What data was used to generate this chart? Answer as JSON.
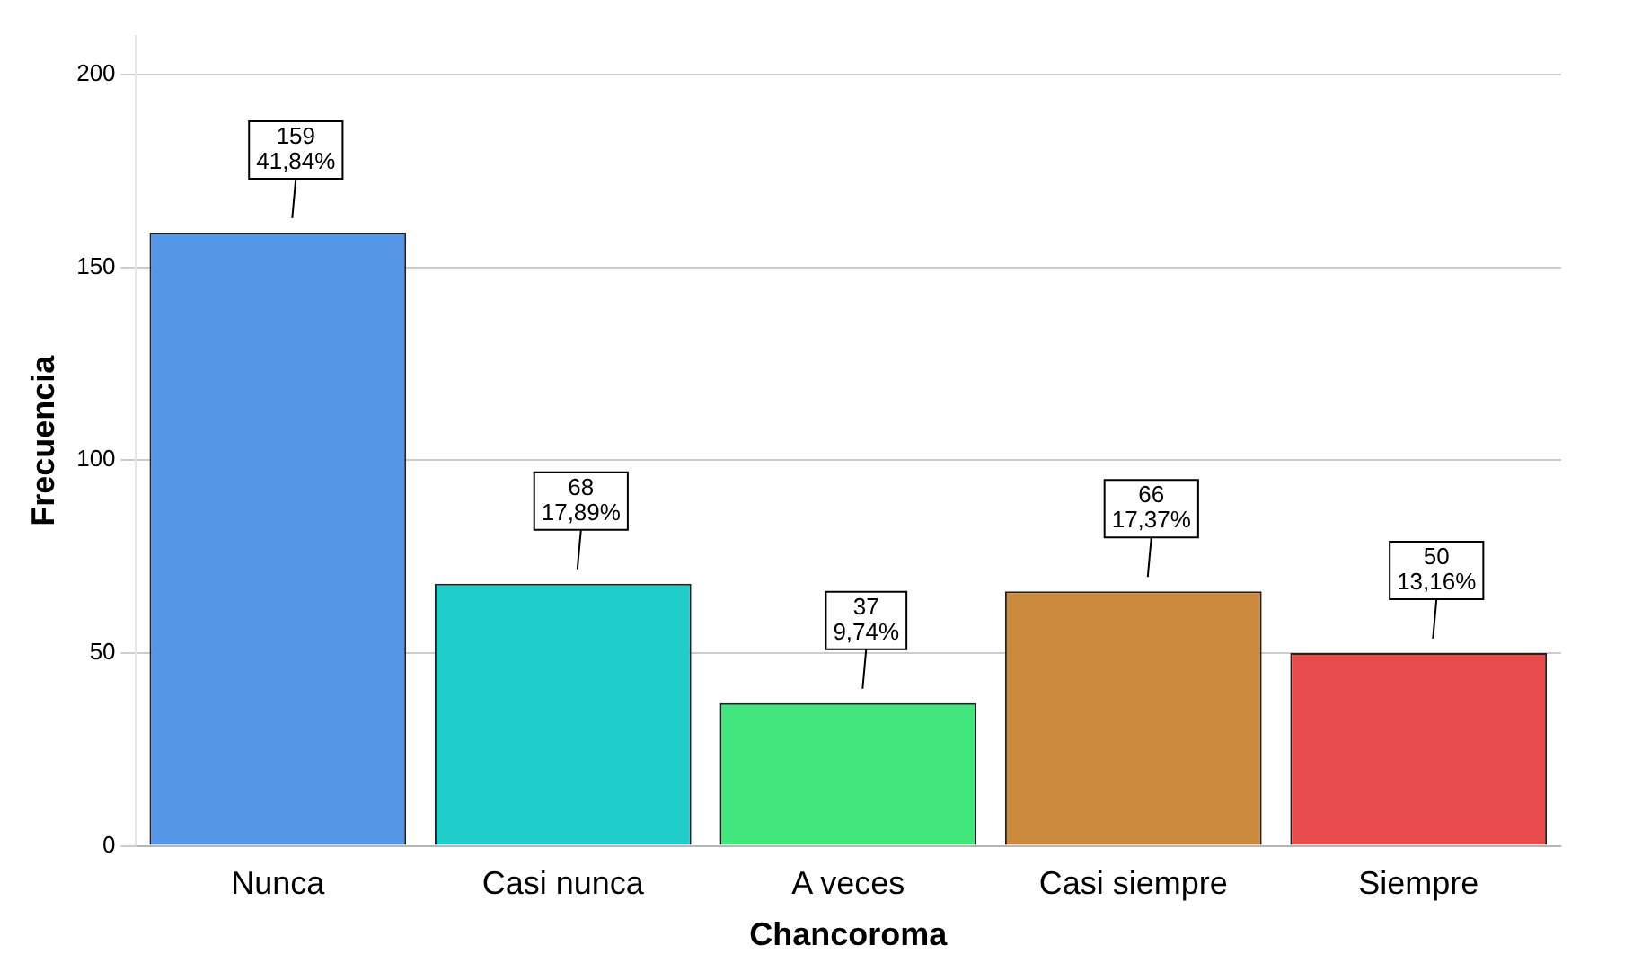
{
  "chart_data": {
    "type": "bar",
    "xlabel": "Chancoroma",
    "ylabel": "Frecuencia",
    "categories": [
      "Nunca",
      "Casi nunca",
      "A veces",
      "Casi siempre",
      "Siempre"
    ],
    "values": [
      159,
      68,
      37,
      66,
      50
    ],
    "colors": [
      "#5596e6",
      "#1fcecb",
      "#41e67d",
      "#cc8a3f",
      "#e84b4b"
    ],
    "value_labels": [
      "159\n41,84%",
      "68\n17,89%",
      "37\n9,74%",
      "66\n17,37%",
      "50\n13,16%"
    ],
    "ylim": [
      0,
      210
    ],
    "yticks": [
      0,
      50,
      100,
      150,
      200
    ],
    "grid": "y",
    "legend": false
  }
}
